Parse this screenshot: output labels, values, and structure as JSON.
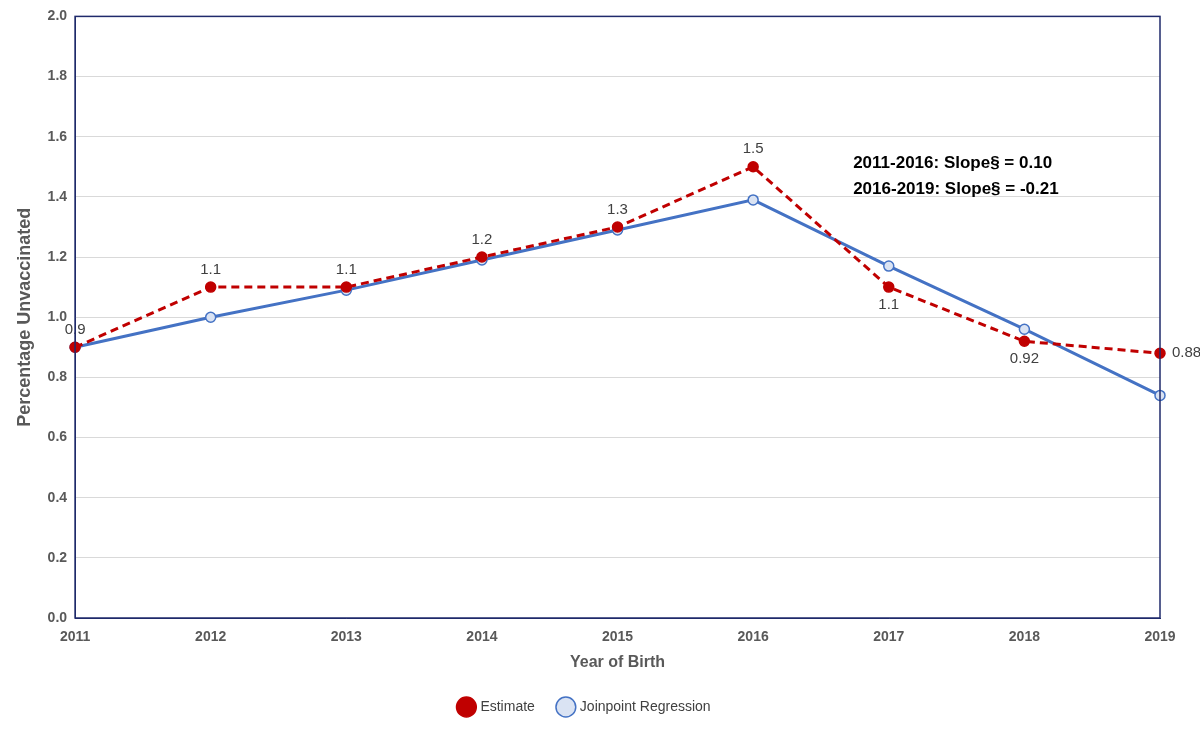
{
  "chart_data": {
    "type": "line",
    "x_label": "Year of Birth",
    "y_label": "Percentage Unvaccinated",
    "categories": [
      "2011",
      "2012",
      "2013",
      "2014",
      "2015",
      "2016",
      "2017",
      "2018",
      "2019"
    ],
    "series": [
      {
        "name": "Estimate",
        "color": "#c00000",
        "line_style": "dashed",
        "marker": "circle",
        "data_labels": true,
        "values": [
          0.9,
          1.1,
          1.1,
          1.2,
          1.3,
          1.5,
          1.1,
          0.92,
          0.88
        ]
      },
      {
        "name": "Joinpoint Regression",
        "color": "#4472c4",
        "line_style": "solid",
        "marker": "circle",
        "values": [
          0.9,
          1.0,
          1.09,
          1.19,
          1.29,
          1.39,
          1.17,
          0.96,
          0.74
        ]
      }
    ],
    "annotations": [
      "2011-2016: Slope§ = 0.10",
      "2016-2019: Slope§ = -0.21"
    ],
    "ylim": [
      0,
      2
    ],
    "yticks": [
      {
        "value": 0,
        "label": "0.0"
      },
      0.2,
      0.4,
      0.6,
      0.8,
      {
        "value": 1,
        "label": "1.0"
      },
      1.2,
      1.4,
      1.6,
      1.8,
      {
        "value": 2,
        "label": "2.0"
      }
    ],
    "grid": true,
    "legend": "bottom"
  }
}
